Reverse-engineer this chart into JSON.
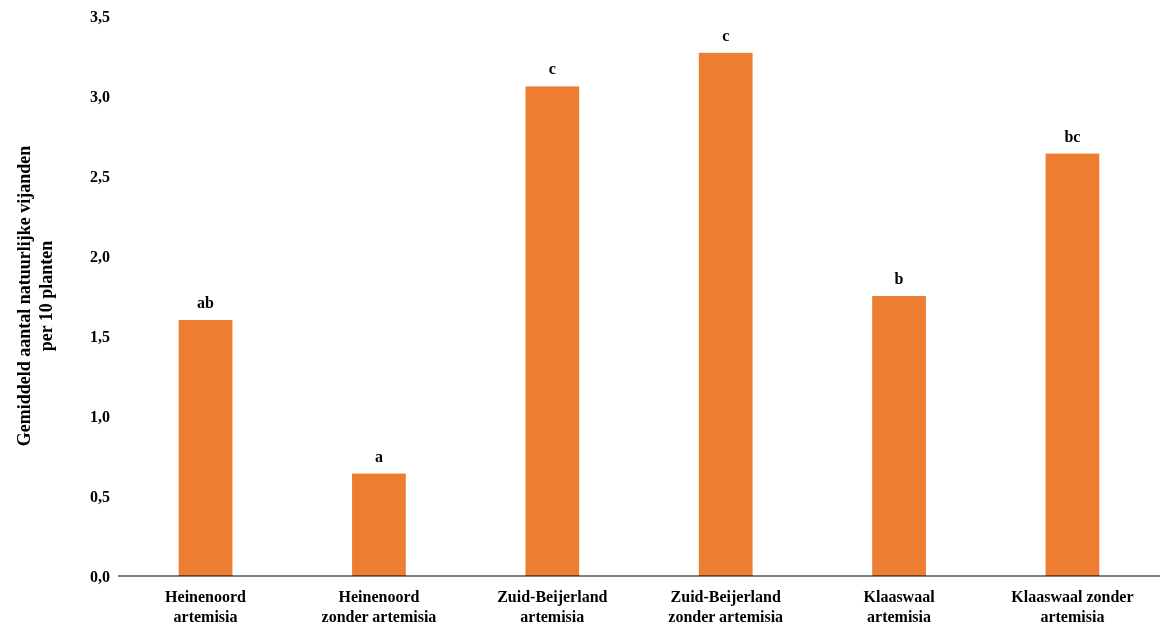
{
  "chart_data": {
    "type": "bar",
    "ylabel": "Gemiddeld  aantal natuurlijke  vijanden per 10 planten",
    "categories": [
      "Heinenoord artemisia",
      "Heinenoord zonder artemisia",
      "Zuid-Beijerland artemisia",
      "Zuid-Beijerland zonder artemisia",
      "Klaaswaal artemisia",
      "Klaaswaal zonder artemisia"
    ],
    "values": [
      1.6,
      0.64,
      3.06,
      3.27,
      1.75,
      2.64
    ],
    "color": "#ed7d31",
    "ylim": [
      0,
      3.5
    ],
    "yticks": [
      {
        "value": 0,
        "label": "0,0"
      },
      {
        "value": 0.5,
        "label": "0,5"
      },
      {
        "value": 1,
        "label": "1,0"
      },
      {
        "value": 1.5,
        "label": "1,5"
      },
      {
        "value": 2,
        "label": "2,0"
      },
      {
        "value": 2.5,
        "label": "2,5"
      },
      {
        "value": 3,
        "label": "3,0"
      },
      {
        "value": 3.5,
        "label": "3,5"
      }
    ],
    "annotations": [
      {
        "text": "ab",
        "x": "Heinenoord artemisia",
        "y": 1.6
      },
      {
        "text": "a",
        "x": "Heinenoord zonder artemisia",
        "y": 0.64
      },
      {
        "text": "c",
        "x": "Zuid-Beijerland artemisia",
        "y": 3.06
      },
      {
        "text": "c",
        "x": "Zuid-Beijerland zonder artemisia",
        "y": 3.27
      },
      {
        "text": "b",
        "x": "Klaaswaal artemisia",
        "y": 1.75
      },
      {
        "text": "bc",
        "x": "Klaaswaal zonder artemisia",
        "y": 2.64
      }
    ],
    "grid": false
  }
}
